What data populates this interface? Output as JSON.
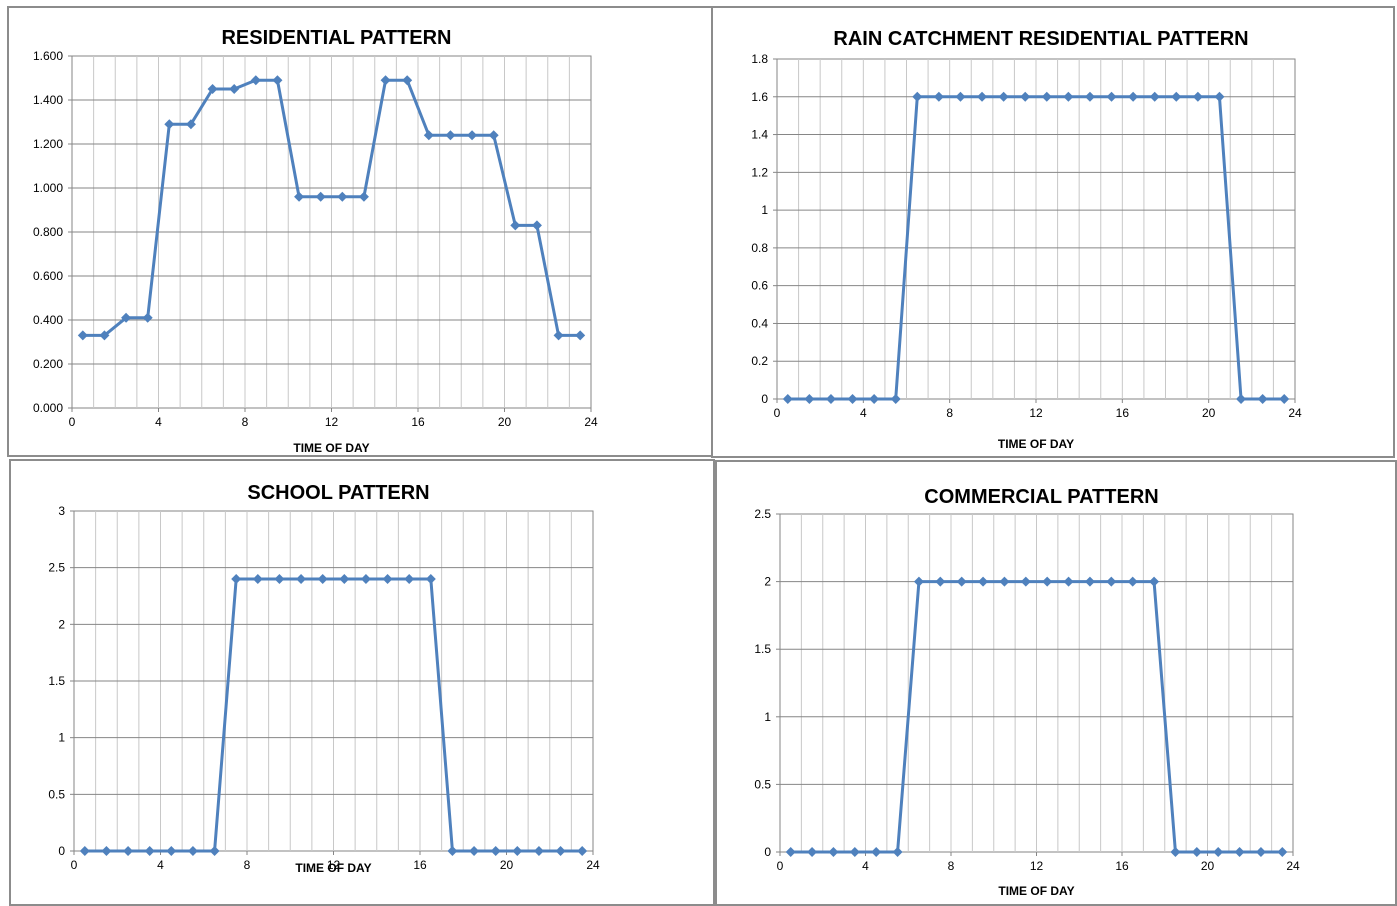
{
  "chart_data": [
    {
      "type": "line",
      "title": "RESIDENTIAL PATTERN",
      "xlabel": "TIME OF DAY",
      "ylabel": "",
      "xlim": [
        0,
        24
      ],
      "ylim": [
        0,
        1.6
      ],
      "xticks": [
        0,
        4,
        8,
        12,
        16,
        20,
        24
      ],
      "xtick_labels": [
        "0",
        "4",
        "8",
        "12",
        "16",
        "20",
        "24"
      ],
      "yticks": [
        0,
        0.2,
        0.4,
        0.6,
        0.8,
        1.0,
        1.2,
        1.4,
        1.6
      ],
      "ytick_labels": [
        "0.000",
        "0.200",
        "0.400",
        "0.600",
        "0.800",
        "1.000",
        "1.200",
        "1.400",
        "1.600"
      ],
      "grid": true,
      "color": "#4f81bd",
      "x": [
        0.5,
        1.5,
        2.5,
        3.5,
        4.5,
        5.5,
        6.5,
        7.5,
        8.5,
        9.5,
        10.5,
        11.5,
        12.5,
        13.5,
        14.5,
        15.5,
        16.5,
        17.5,
        18.5,
        19.5,
        20.5,
        21.5,
        22.5,
        23.5
      ],
      "values": [
        0.33,
        0.33,
        0.41,
        0.41,
        1.29,
        1.29,
        1.45,
        1.45,
        1.49,
        1.49,
        0.96,
        0.96,
        0.96,
        0.96,
        1.49,
        1.49,
        1.24,
        1.24,
        1.24,
        1.24,
        0.83,
        0.83,
        0.33,
        0.33
      ]
    },
    {
      "type": "line",
      "title": "RAIN CATCHMENT RESIDENTIAL PATTERN",
      "xlabel": "TIME OF DAY",
      "ylabel": "",
      "xlim": [
        0,
        24
      ],
      "ylim": [
        0,
        1.8
      ],
      "xticks": [
        0,
        4,
        8,
        12,
        16,
        20,
        24
      ],
      "xtick_labels": [
        "0",
        "4",
        "8",
        "12",
        "16",
        "20",
        "24"
      ],
      "yticks": [
        0,
        0.2,
        0.4,
        0.6,
        0.8,
        1,
        1.2,
        1.4,
        1.6,
        1.8
      ],
      "ytick_labels": [
        "0",
        "0.2",
        "0.4",
        "0.6",
        "0.8",
        "1",
        "1.2",
        "1.4",
        "1.6",
        "1.8"
      ],
      "grid": true,
      "color": "#4f81bd",
      "x": [
        0.5,
        1.5,
        2.5,
        3.5,
        4.5,
        5.5,
        6.5,
        7.5,
        8.5,
        9.5,
        10.5,
        11.5,
        12.5,
        13.5,
        14.5,
        15.5,
        16.5,
        17.5,
        18.5,
        19.5,
        20.5,
        21.5,
        22.5,
        23.5
      ],
      "values": [
        0,
        0,
        0,
        0,
        0,
        0,
        1.6,
        1.6,
        1.6,
        1.6,
        1.6,
        1.6,
        1.6,
        1.6,
        1.6,
        1.6,
        1.6,
        1.6,
        1.6,
        1.6,
        1.6,
        0,
        0,
        0
      ]
    },
    {
      "type": "line",
      "title": "SCHOOL PATTERN",
      "xlabel": "TIME OF DAY",
      "ylabel": "",
      "xlim": [
        0,
        24
      ],
      "ylim": [
        0,
        3
      ],
      "xticks": [
        0,
        4,
        8,
        12,
        16,
        20,
        24
      ],
      "xtick_labels": [
        "0",
        "4",
        "8",
        "12",
        "16",
        "20",
        "24"
      ],
      "yticks": [
        0,
        0.5,
        1,
        1.5,
        2,
        2.5,
        3
      ],
      "ytick_labels": [
        "0",
        "0.5",
        "1",
        "1.5",
        "2",
        "2.5",
        "3"
      ],
      "grid": true,
      "color": "#4f81bd",
      "x": [
        0.5,
        1.5,
        2.5,
        3.5,
        4.5,
        5.5,
        6.5,
        7.5,
        8.5,
        9.5,
        10.5,
        11.5,
        12.5,
        13.5,
        14.5,
        15.5,
        16.5,
        17.5,
        18.5,
        19.5,
        20.5,
        21.5,
        22.5,
        23.5
      ],
      "values": [
        0,
        0,
        0,
        0,
        0,
        0,
        0,
        2.4,
        2.4,
        2.4,
        2.4,
        2.4,
        2.4,
        2.4,
        2.4,
        2.4,
        2.4,
        0,
        0,
        0,
        0,
        0,
        0,
        0
      ]
    },
    {
      "type": "line",
      "title": "COMMERCIAL PATTERN",
      "xlabel": "TIME OF DAY",
      "ylabel": "",
      "xlim": [
        0,
        24
      ],
      "ylim": [
        0,
        2.5
      ],
      "xticks": [
        0,
        4,
        8,
        12,
        16,
        20,
        24
      ],
      "xtick_labels": [
        "0",
        "4",
        "8",
        "12",
        "16",
        "20",
        "24"
      ],
      "yticks": [
        0,
        0.5,
        1,
        1.5,
        2,
        2.5
      ],
      "ytick_labels": [
        "0",
        "0.5",
        "1",
        "1.5",
        "2",
        "2.5"
      ],
      "grid": true,
      "color": "#4f81bd",
      "x": [
        0.5,
        1.5,
        2.5,
        3.5,
        4.5,
        5.5,
        6.5,
        7.5,
        8.5,
        9.5,
        10.5,
        11.5,
        12.5,
        13.5,
        14.5,
        15.5,
        16.5,
        17.5,
        18.5,
        19.5,
        20.5,
        21.5,
        22.5,
        23.5
      ],
      "values": [
        0,
        0,
        0,
        0,
        0,
        0,
        2,
        2,
        2,
        2,
        2,
        2,
        2,
        2,
        2,
        2,
        2,
        2,
        0,
        0,
        0,
        0,
        0,
        0
      ]
    }
  ]
}
